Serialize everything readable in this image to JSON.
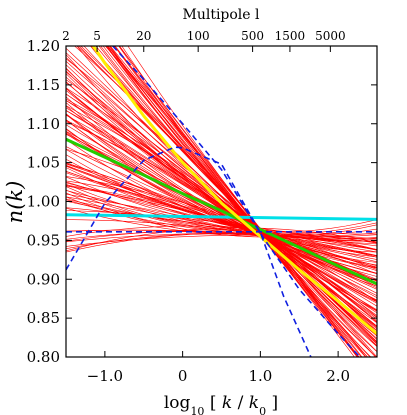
{
  "chart_data": {
    "type": "line",
    "top_axis_title": "Multipole l",
    "top_ticks": [
      {
        "label": "2",
        "x": -1.5
      },
      {
        "label": "5",
        "x": -1.1
      },
      {
        "label": "20",
        "x": -0.5
      },
      {
        "label": "100",
        "x": 0.2
      },
      {
        "label": "500",
        "x": 0.9
      },
      {
        "label": "1500",
        "x": 1.38
      },
      {
        "label": "5000",
        "x": 1.9
      }
    ],
    "xaxis": {
      "label_html": "log<tspan baseline-shift=\"sub\" font-size=\"11\">10</tspan> [ <tspan font-style=\"italic\">k</tspan> / <tspan font-style=\"italic\">k</tspan><tspan baseline-shift=\"sub\" font-size=\"11\">0</tspan> ]",
      "range": [
        -1.5,
        2.5
      ],
      "ticks": [
        -1.0,
        0,
        1.0,
        2.0
      ],
      "tick_labels": [
        "−1.0",
        "0",
        "1.0",
        "2.0"
      ]
    },
    "yaxis": {
      "label": "n(k)",
      "range": [
        0.8,
        1.2
      ],
      "ticks": [
        0.8,
        0.85,
        0.9,
        0.95,
        1.0,
        1.05,
        1.1,
        1.15,
        1.2
      ],
      "tick_labels": [
        "0.80",
        "0.85",
        "0.90",
        "0.95",
        "1.00",
        "1.05",
        "1.10",
        "1.15",
        "1.20"
      ]
    },
    "pivot": {
      "x": 1.0,
      "y": 0.96
    },
    "red_bundle": {
      "color": "#ff0000",
      "count": 130,
      "slope_range": [
        -0.13,
        0.0
      ],
      "curvature_range": [
        -0.006,
        0.009
      ],
      "seed": 7
    },
    "highlighted": [
      {
        "color": "#00e0e8",
        "points": [
          [
            -1.5,
            0.983
          ],
          [
            2.5,
            0.977
          ]
        ]
      },
      {
        "color": "#22cc00",
        "points": [
          [
            -1.5,
            1.08
          ],
          [
            -1.0,
            1.057
          ],
          [
            -0.5,
            1.034
          ],
          [
            0.0,
            1.01
          ],
          [
            0.5,
            0.988
          ],
          [
            1.0,
            0.964
          ],
          [
            1.5,
            0.941
          ],
          [
            2.0,
            0.917
          ],
          [
            2.5,
            0.894
          ]
        ]
      },
      {
        "color": "#ffee00",
        "points": [
          [
            -1.15,
            1.2
          ],
          [
            -1.0,
            1.178
          ],
          [
            -0.5,
            1.11
          ],
          [
            0.0,
            1.05
          ],
          [
            0.5,
            0.998
          ],
          [
            1.0,
            0.955
          ],
          [
            1.5,
            0.912
          ],
          [
            2.0,
            0.872
          ],
          [
            2.5,
            0.83
          ]
        ]
      }
    ],
    "blue_dashed": [
      {
        "color": "#1020e0",
        "points": [
          [
            -0.9,
            1.2
          ],
          [
            -0.5,
            1.157
          ],
          [
            0.0,
            1.1
          ],
          [
            0.5,
            1.041
          ],
          [
            1.0,
            0.959
          ],
          [
            1.5,
            0.887
          ],
          [
            2.0,
            0.83
          ],
          [
            2.28,
            0.8
          ]
        ]
      },
      {
        "color": "#1020e0",
        "points": [
          [
            -1.5,
            0.912
          ],
          [
            -1.0,
            0.998
          ],
          [
            -0.5,
            1.053
          ],
          [
            -0.1,
            1.07
          ],
          [
            0.0,
            1.069
          ],
          [
            0.5,
            1.048
          ],
          [
            1.0,
            0.96
          ],
          [
            1.3,
            0.878
          ],
          [
            1.65,
            0.8
          ]
        ]
      },
      {
        "color": "#1020e0",
        "points": [
          [
            -1.5,
            0.961
          ],
          [
            2.5,
            0.961
          ]
        ]
      }
    ]
  }
}
